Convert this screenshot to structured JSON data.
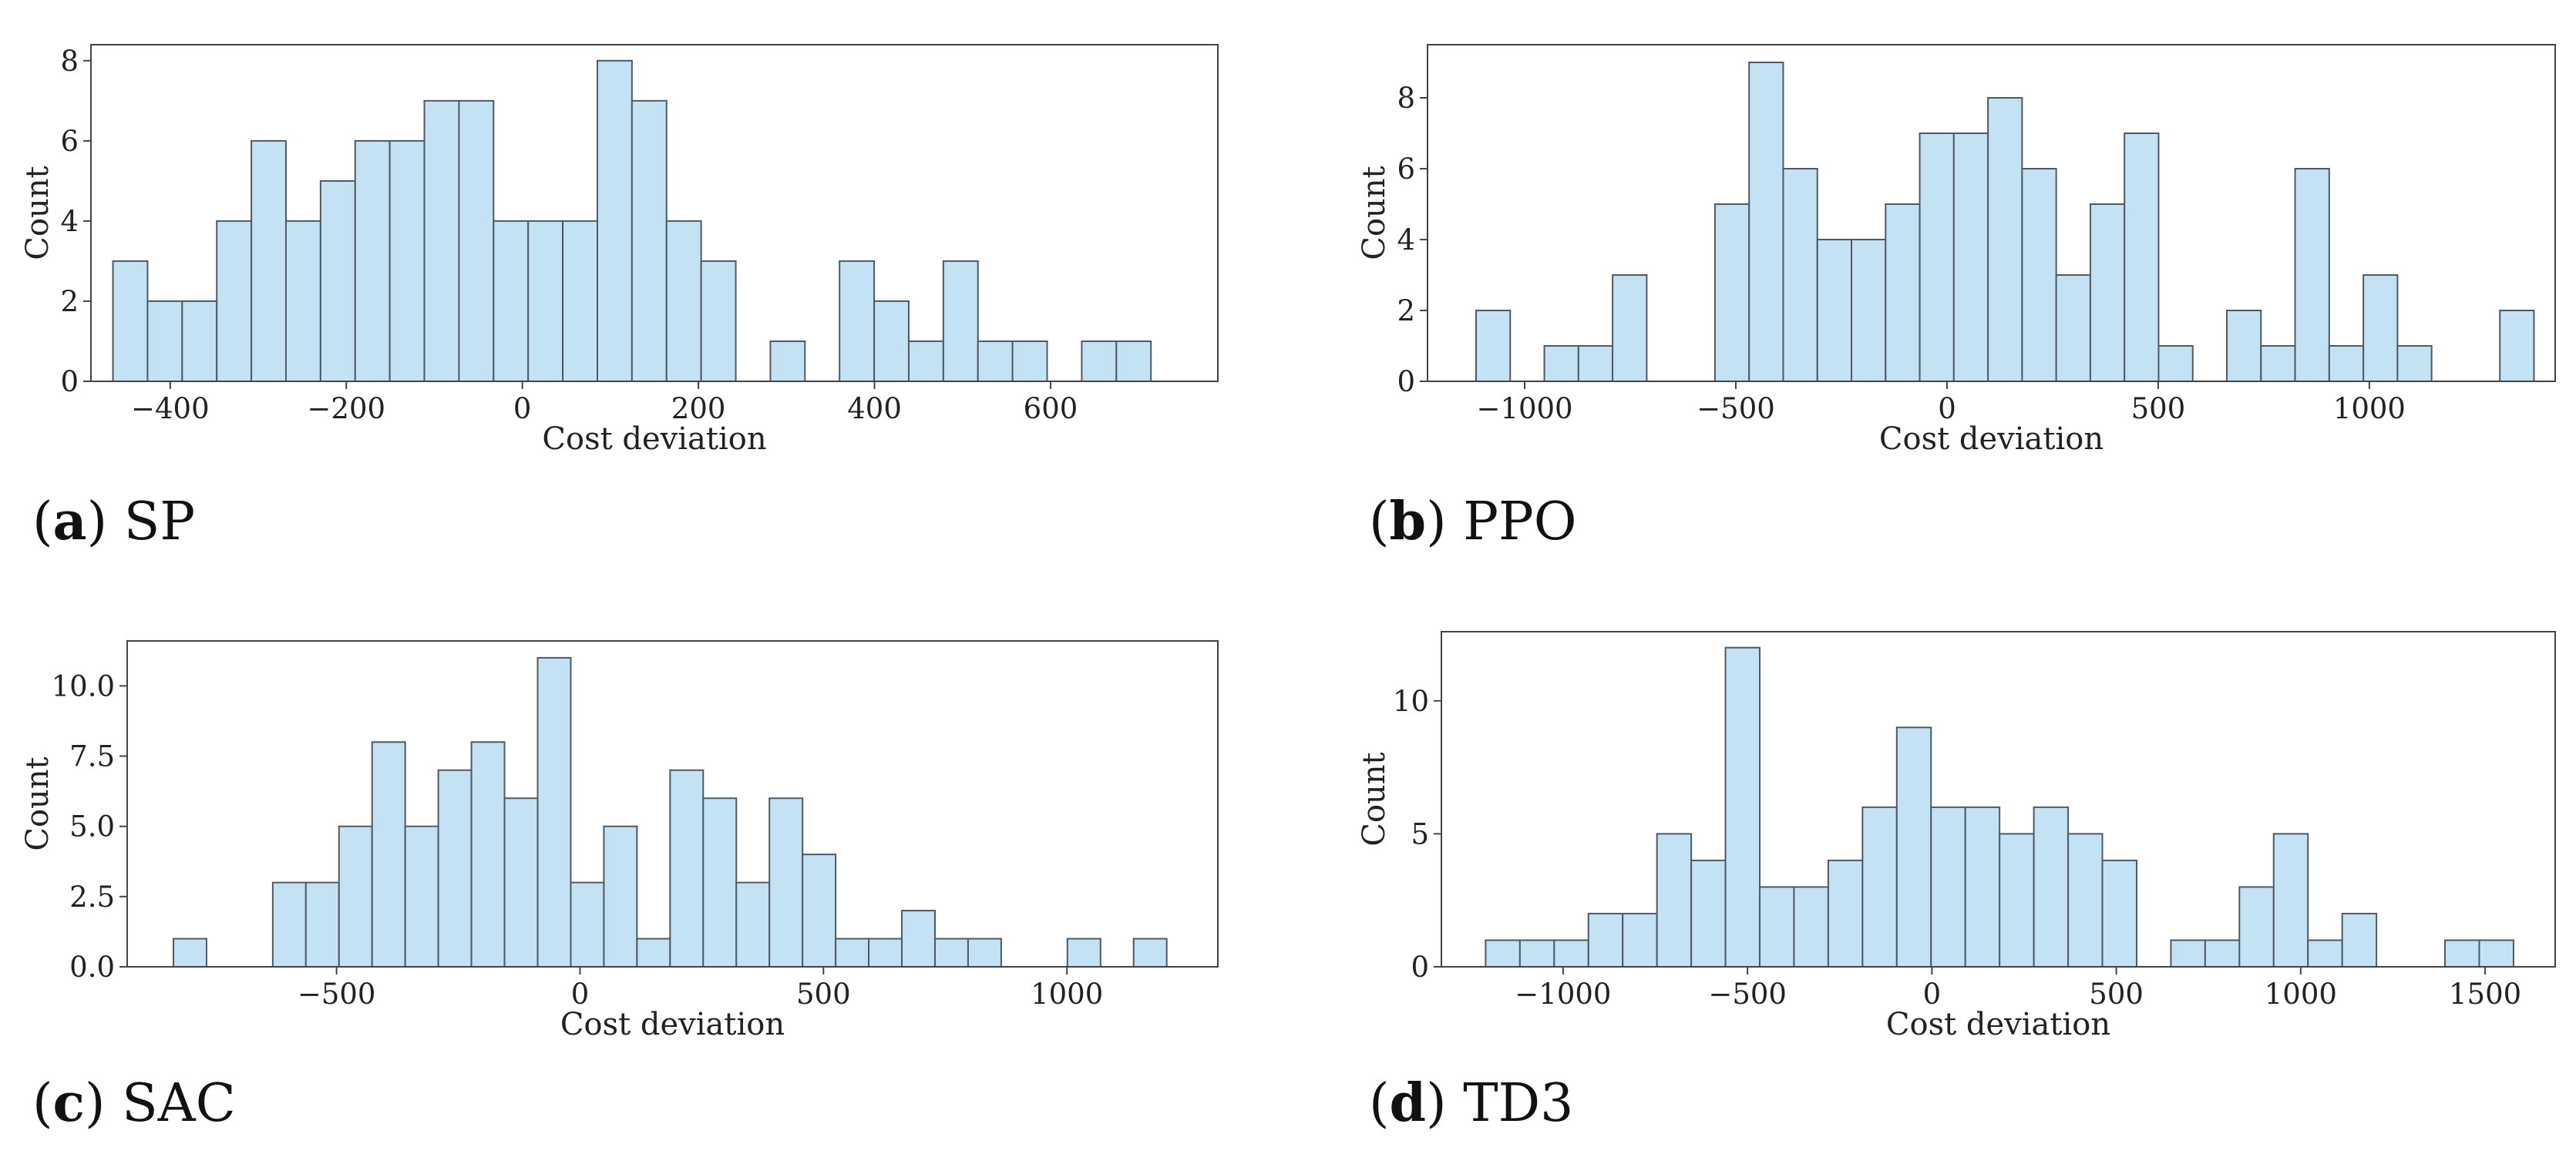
{
  "chart_data": [
    {
      "type": "bar",
      "panel": "a",
      "caption_letter": "a",
      "caption_text": "SP",
      "xlabel": "Cost deviation",
      "ylabel": "Count",
      "xlim": [
        -490,
        790
      ],
      "ylim": [
        0,
        8.4
      ],
      "bin_start": -465,
      "bin_width": 39.3,
      "values": [
        3,
        2,
        2,
        4,
        6,
        4,
        5,
        6,
        6,
        7,
        7,
        4,
        4,
        4,
        8,
        7,
        4,
        3,
        0,
        1,
        0,
        3,
        2,
        1,
        3,
        1,
        1,
        0,
        1,
        1
      ],
      "xticks": [
        -400,
        -200,
        0,
        200,
        400,
        600
      ],
      "xtick_labels": [
        "−400",
        "−200",
        "0",
        "200",
        "400",
        "600"
      ],
      "yticks": [
        0,
        2,
        4,
        6,
        8
      ],
      "ytick_labels": [
        "0",
        "2",
        "4",
        "6",
        "8"
      ]
    },
    {
      "type": "bar",
      "panel": "b",
      "caption_letter": "b",
      "caption_text": "PPO",
      "xlabel": "Cost deviation",
      "ylabel": "Count",
      "xlim": [
        -1230,
        1440
      ],
      "ylim": [
        0,
        9.5
      ],
      "bin_start": -1115,
      "bin_width": 80.8,
      "values": [
        2,
        0,
        1,
        1,
        3,
        0,
        0,
        5,
        9,
        6,
        4,
        4,
        5,
        7,
        7,
        8,
        6,
        3,
        5,
        7,
        1,
        0,
        2,
        1,
        6,
        1,
        3,
        1,
        0,
        0,
        2
      ],
      "xticks": [
        -1000,
        -500,
        0,
        500,
        1000
      ],
      "xtick_labels": [
        "−1000",
        "−500",
        "0",
        "500",
        "1000"
      ],
      "yticks": [
        0,
        2,
        4,
        6,
        8
      ],
      "ytick_labels": [
        "0",
        "2",
        "4",
        "6",
        "8"
      ]
    },
    {
      "type": "bar",
      "panel": "c",
      "caption_letter": "c",
      "caption_text": "SAC",
      "xlabel": "Cost deviation",
      "ylabel": "Count",
      "xlim": [
        -930,
        1310
      ],
      "ylim": [
        0,
        11.6
      ],
      "bin_start": -835,
      "bin_width": 68.0,
      "values": [
        1,
        0,
        0,
        3,
        3,
        5,
        8,
        5,
        7,
        8,
        6,
        11,
        3,
        5,
        1,
        7,
        6,
        3,
        6,
        4,
        1,
        1,
        2,
        1,
        1,
        0,
        0,
        1,
        0,
        1
      ],
      "xticks": [
        -500,
        0,
        500,
        1000
      ],
      "xtick_labels": [
        "−500",
        "0",
        "500",
        "1000"
      ],
      "yticks": [
        0,
        2.5,
        5,
        7.5,
        10
      ],
      "ytick_labels": [
        "0.0",
        "2.5",
        "5.0",
        "7.5",
        "10.0"
      ]
    },
    {
      "type": "bar",
      "panel": "d",
      "caption_letter": "d",
      "caption_text": "TD3",
      "xlabel": "Cost deviation",
      "ylabel": "Count",
      "xlim": [
        -1330,
        1690
      ],
      "ylim": [
        0,
        12.6
      ],
      "bin_start": -1210,
      "bin_width": 92.9,
      "values": [
        1,
        1,
        1,
        2,
        2,
        5,
        4,
        12,
        3,
        3,
        4,
        6,
        9,
        6,
        6,
        5,
        6,
        5,
        4,
        0,
        1,
        1,
        3,
        5,
        1,
        2,
        0,
        0,
        1,
        1
      ],
      "xticks": [
        -1000,
        -500,
        0,
        500,
        1000,
        1500
      ],
      "xtick_labels": [
        "−1000",
        "−500",
        "0",
        "500",
        "1000",
        "1500"
      ],
      "yticks": [
        0,
        5,
        10
      ],
      "ytick_labels": [
        "0",
        "5",
        "10"
      ]
    }
  ]
}
